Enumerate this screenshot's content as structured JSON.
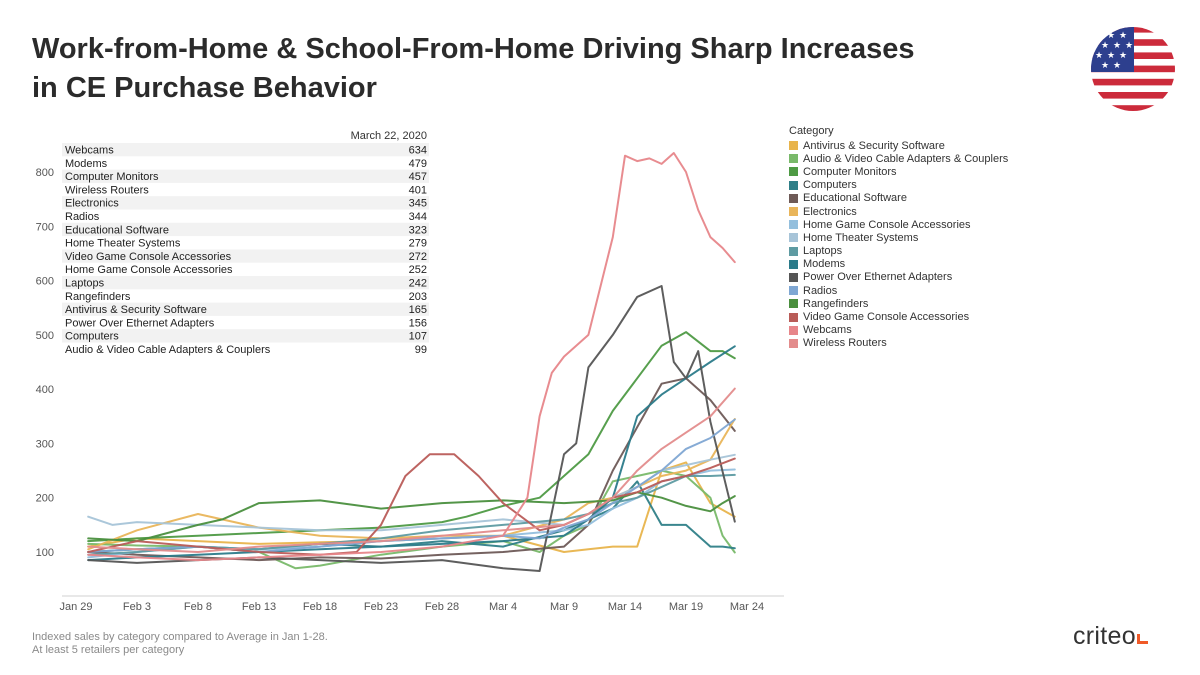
{
  "header": {
    "title_line1": "Work-from-Home & School-From-Home Driving Sharp Increases",
    "title_line2": "in CE Purchase Behavior"
  },
  "footer": {
    "note_line1": "Indexed sales by category compared to Average in Jan 1-28.",
    "note_line2": "At least 5 retailers per category",
    "brand": "criteo"
  },
  "colors": {
    "flag_red": "#cc2b3b",
    "flag_blue": "#2d3f8e",
    "brand_orange": "#f05a28"
  },
  "chart_data": {
    "type": "line",
    "title": "Work-from-Home & School-From-Home Driving Sharp Increases in CE Purchase Behavior",
    "xlabel": "",
    "ylabel": "",
    "x_ticks": [
      "Jan 29",
      "Feb 3",
      "Feb 8",
      "Feb 13",
      "Feb 18",
      "Feb 23",
      "Feb 28",
      "Mar 4",
      "Mar 9",
      "Mar 14",
      "Mar 19",
      "Mar 24"
    ],
    "x_start": "Jan 29",
    "x_range_days": [
      0,
      55
    ],
    "y_ticks": [
      100,
      200,
      300,
      400,
      500,
      600,
      700,
      800
    ],
    "ylim": [
      30,
      880
    ],
    "grid": false,
    "legend_title": "Category",
    "legend_position": "right",
    "table": {
      "header": "March 22, 2020",
      "rows": [
        {
          "label": "Webcams",
          "value": "634"
        },
        {
          "label": "Modems",
          "value": "479"
        },
        {
          "label": "Computer Monitors",
          "value": "457"
        },
        {
          "label": "Wireless Routers",
          "value": "401"
        },
        {
          "label": "Electronics",
          "value": "345"
        },
        {
          "label": "Radios",
          "value": "344"
        },
        {
          "label": "Educational Software",
          "value": "323"
        },
        {
          "label": "Home Theater Systems",
          "value": "279"
        },
        {
          "label": "Video Game Console Accessories",
          "value": "272"
        },
        {
          "label": "Home Game Console Accessories",
          "value": "252"
        },
        {
          "label": "Laptops",
          "value": "242"
        },
        {
          "label": "Rangefinders",
          "value": "203"
        },
        {
          "label": "Antivirus & Security Software",
          "value": "165"
        },
        {
          "label": "Power Over Ethernet Adapters",
          "value": "156"
        },
        {
          "label": "Computers",
          "value": "107"
        },
        {
          "label": "Audio & Video Cable Adapters & Couplers",
          "value": "99"
        }
      ]
    },
    "series": [
      {
        "name": "Antivirus & Security Software",
        "color": "#e8b44c",
        "x": [
          1,
          5,
          10,
          15,
          20,
          25,
          30,
          35,
          40,
          42,
          44,
          46,
          48,
          50,
          52,
          54
        ],
        "values": [
          110,
          125,
          120,
          115,
          118,
          120,
          125,
          130,
          100,
          105,
          110,
          110,
          250,
          265,
          190,
          165
        ]
      },
      {
        "name": "Audio & Video Cable Adapters & Couplers",
        "color": "#79b96a",
        "x": [
          1,
          5,
          10,
          15,
          18,
          20,
          25,
          30,
          35,
          38,
          40,
          42,
          44,
          46,
          48,
          50,
          52,
          53,
          54
        ],
        "values": [
          115,
          112,
          110,
          100,
          70,
          75,
          95,
          110,
          120,
          100,
          130,
          150,
          230,
          240,
          250,
          240,
          200,
          130,
          99
        ]
      },
      {
        "name": "Computer Monitors",
        "color": "#4e9a44",
        "x": [
          1,
          5,
          10,
          15,
          20,
          25,
          30,
          32,
          35,
          38,
          40,
          42,
          44,
          46,
          48,
          50,
          52,
          53,
          54
        ],
        "values": [
          120,
          125,
          130,
          135,
          140,
          145,
          155,
          165,
          185,
          200,
          240,
          280,
          360,
          420,
          480,
          505,
          470,
          470,
          457
        ]
      },
      {
        "name": "Computers",
        "color": "#2f7f88",
        "x": [
          1,
          5,
          10,
          15,
          20,
          25,
          30,
          35,
          40,
          42,
          44,
          46,
          48,
          50,
          52,
          53,
          54
        ],
        "values": [
          100,
          105,
          110,
          105,
          115,
          110,
          120,
          110,
          140,
          160,
          180,
          230,
          150,
          150,
          110,
          110,
          107
        ]
      },
      {
        "name": "Educational Software",
        "color": "#6e5a57",
        "x": [
          1,
          5,
          10,
          15,
          20,
          25,
          30,
          35,
          40,
          42,
          44,
          46,
          48,
          50,
          52,
          54
        ],
        "values": [
          100,
          95,
          90,
          85,
          90,
          88,
          95,
          100,
          110,
          150,
          250,
          330,
          410,
          420,
          380,
          323
        ]
      },
      {
        "name": "Electronics",
        "color": "#e9b55a",
        "x": [
          1,
          5,
          10,
          15,
          20,
          25,
          30,
          35,
          40,
          42,
          44,
          46,
          48,
          50,
          52,
          54
        ],
        "values": [
          105,
          140,
          170,
          145,
          130,
          125,
          130,
          130,
          160,
          190,
          200,
          220,
          240,
          250,
          270,
          345
        ]
      },
      {
        "name": "Home Game Console Accessories",
        "color": "#94bfdd",
        "x": [
          1,
          5,
          10,
          15,
          20,
          25,
          30,
          35,
          40,
          42,
          44,
          46,
          48,
          50,
          52,
          54
        ],
        "values": [
          90,
          100,
          110,
          105,
          110,
          120,
          125,
          130,
          140,
          150,
          180,
          200,
          230,
          240,
          250,
          252
        ]
      },
      {
        "name": "Home Theater Systems",
        "color": "#a7c4d8",
        "x": [
          1,
          3,
          5,
          10,
          15,
          20,
          25,
          30,
          35,
          40,
          42,
          44,
          46,
          48,
          50,
          52,
          54
        ],
        "values": [
          165,
          150,
          155,
          150,
          145,
          140,
          140,
          150,
          160,
          150,
          170,
          200,
          220,
          250,
          260,
          270,
          279
        ]
      },
      {
        "name": "Laptops",
        "color": "#5e9ba2",
        "x": [
          1,
          5,
          10,
          15,
          20,
          25,
          30,
          35,
          40,
          42,
          44,
          46,
          48,
          50,
          52,
          54
        ],
        "values": [
          95,
          100,
          110,
          105,
          115,
          125,
          140,
          150,
          160,
          170,
          190,
          200,
          220,
          240,
          240,
          242
        ]
      },
      {
        "name": "Modems",
        "color": "#2b7b8a",
        "x": [
          1,
          5,
          10,
          15,
          20,
          25,
          30,
          35,
          40,
          42,
          44,
          46,
          48,
          50,
          52,
          54
        ],
        "values": [
          85,
          90,
          95,
          100,
          105,
          110,
          115,
          120,
          130,
          160,
          200,
          350,
          390,
          420,
          450,
          479
        ]
      },
      {
        "name": "Power Over Ethernet Adapters",
        "color": "#555555",
        "x": [
          1,
          5,
          10,
          15,
          20,
          25,
          30,
          35,
          38,
          40,
          41,
          42,
          44,
          46,
          48,
          49,
          50,
          51,
          52,
          54
        ],
        "values": [
          85,
          80,
          85,
          90,
          85,
          80,
          85,
          70,
          65,
          280,
          300,
          440,
          500,
          570,
          590,
          450,
          420,
          470,
          340,
          156
        ]
      },
      {
        "name": "Radios",
        "color": "#7fa7d3",
        "x": [
          1,
          5,
          10,
          15,
          20,
          25,
          30,
          35,
          38,
          40,
          42,
          44,
          46,
          48,
          50,
          52,
          54
        ],
        "values": [
          100,
          105,
          110,
          100,
          110,
          120,
          125,
          130,
          125,
          145,
          160,
          190,
          220,
          250,
          290,
          310,
          344
        ]
      },
      {
        "name": "Rangefinders",
        "color": "#4a8f3e",
        "x": [
          1,
          5,
          10,
          12,
          15,
          20,
          25,
          30,
          35,
          40,
          44,
          46,
          48,
          50,
          52,
          53,
          54
        ],
        "values": [
          125,
          120,
          150,
          160,
          190,
          195,
          180,
          190,
          195,
          190,
          195,
          210,
          200,
          185,
          175,
          190,
          203
        ]
      },
      {
        "name": "Video Game Console Accessories",
        "color": "#b95c58",
        "x": [
          1,
          5,
          10,
          15,
          20,
          23,
          25,
          27,
          29,
          31,
          33,
          35,
          38,
          40,
          42,
          44,
          46,
          48,
          50,
          52,
          54
        ],
        "values": [
          100,
          120,
          110,
          100,
          95,
          100,
          150,
          240,
          280,
          280,
          240,
          190,
          140,
          150,
          170,
          200,
          210,
          230,
          240,
          255,
          272
        ]
      },
      {
        "name": "Webcams",
        "color": "#e7868a",
        "x": [
          1,
          5,
          10,
          15,
          20,
          25,
          30,
          35,
          37,
          38,
          39,
          40,
          42,
          44,
          45,
          46,
          47,
          48,
          49,
          50,
          51,
          52,
          53,
          54
        ],
        "values": [
          95,
          90,
          85,
          90,
          95,
          100,
          110,
          130,
          200,
          350,
          430,
          460,
          500,
          680,
          830,
          820,
          825,
          815,
          835,
          800,
          730,
          680,
          660,
          634
        ]
      },
      {
        "name": "Wireless Routers",
        "color": "#e38c8c",
        "x": [
          1,
          5,
          10,
          15,
          20,
          25,
          30,
          35,
          40,
          42,
          44,
          46,
          48,
          50,
          52,
          54
        ],
        "values": [
          110,
          105,
          100,
          110,
          115,
          120,
          130,
          140,
          150,
          170,
          200,
          250,
          290,
          320,
          350,
          401
        ]
      }
    ]
  }
}
